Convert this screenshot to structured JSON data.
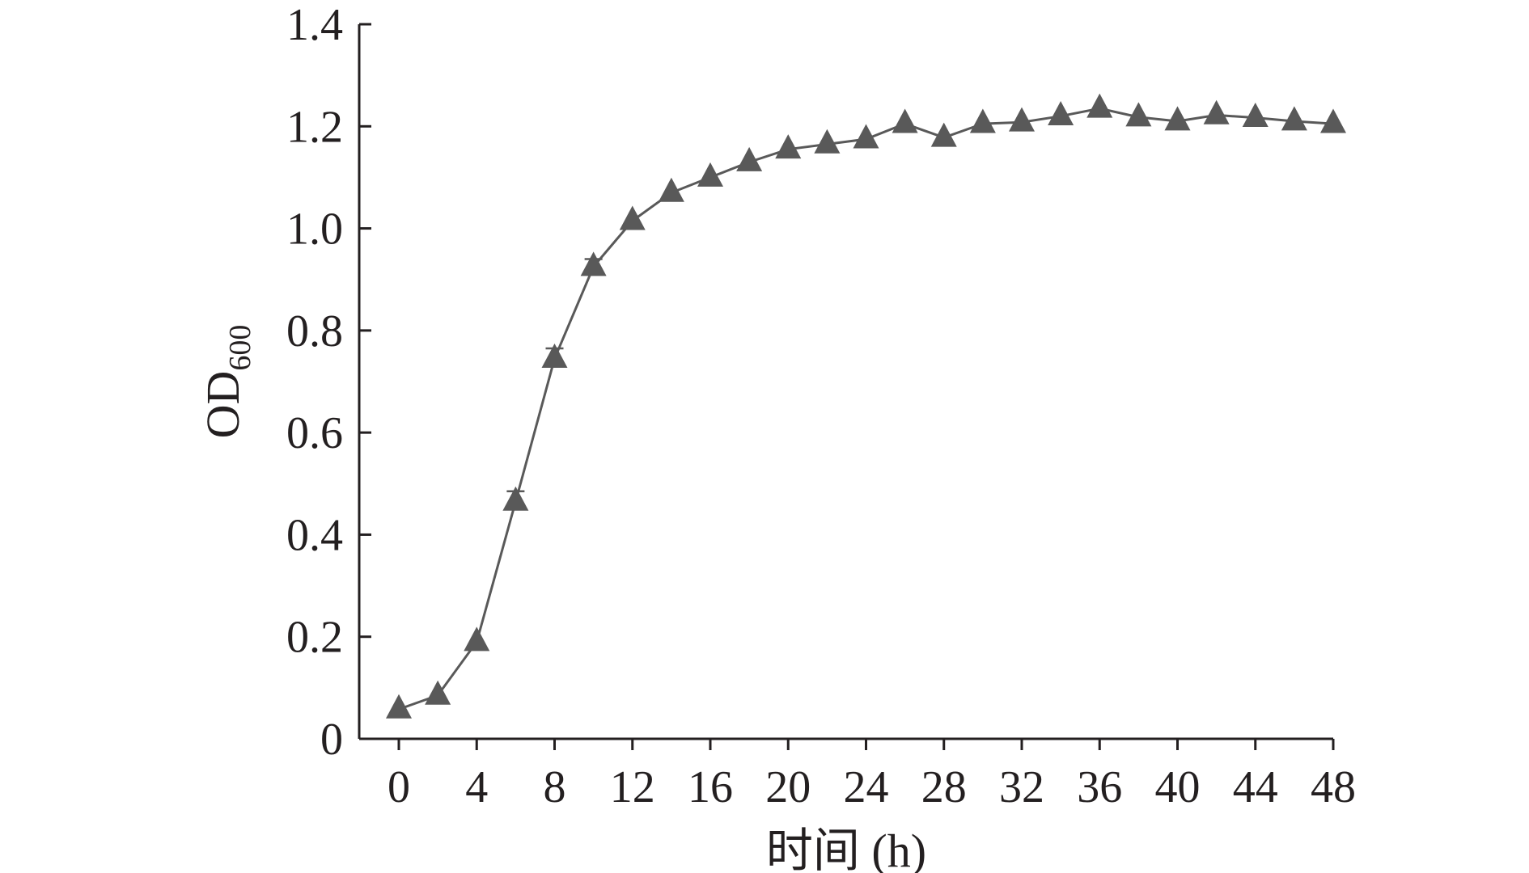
{
  "chart_data": {
    "type": "line",
    "xlabel": "时间 (h)",
    "ylabel": "OD",
    "ylabel_subscript": "600",
    "xlim": [
      0,
      48
    ],
    "ylim": [
      0,
      1.4
    ],
    "x_ticks": [
      "0",
      "4",
      "8",
      "12",
      "16",
      "20",
      "24",
      "28",
      "32",
      "36",
      "40",
      "44",
      "48"
    ],
    "y_ticks": [
      "0",
      "0.2",
      "0.4",
      "0.6",
      "0.8",
      "1.0",
      "1.2",
      "1.4"
    ],
    "grid": false,
    "series": [
      {
        "marker": "triangle",
        "color": "#595959",
        "x": [
          0,
          2,
          4,
          6,
          8,
          10,
          12,
          14,
          16,
          18,
          20,
          22,
          24,
          26,
          28,
          30,
          32,
          34,
          36,
          38,
          40,
          42,
          44,
          46,
          48
        ],
        "y": [
          0.058,
          0.085,
          0.19,
          0.465,
          0.745,
          0.925,
          1.015,
          1.07,
          1.1,
          1.13,
          1.155,
          1.165,
          1.175,
          1.205,
          1.178,
          1.205,
          1.208,
          1.22,
          1.235,
          1.218,
          1.21,
          1.222,
          1.217,
          1.21,
          1.205
        ],
        "error": [
          0,
          0,
          0,
          0.02,
          0.02,
          0.015,
          0,
          0,
          0,
          0,
          0,
          0,
          0,
          0,
          0,
          0,
          0,
          0,
          0,
          0,
          0,
          0,
          0,
          0,
          0
        ]
      }
    ]
  }
}
